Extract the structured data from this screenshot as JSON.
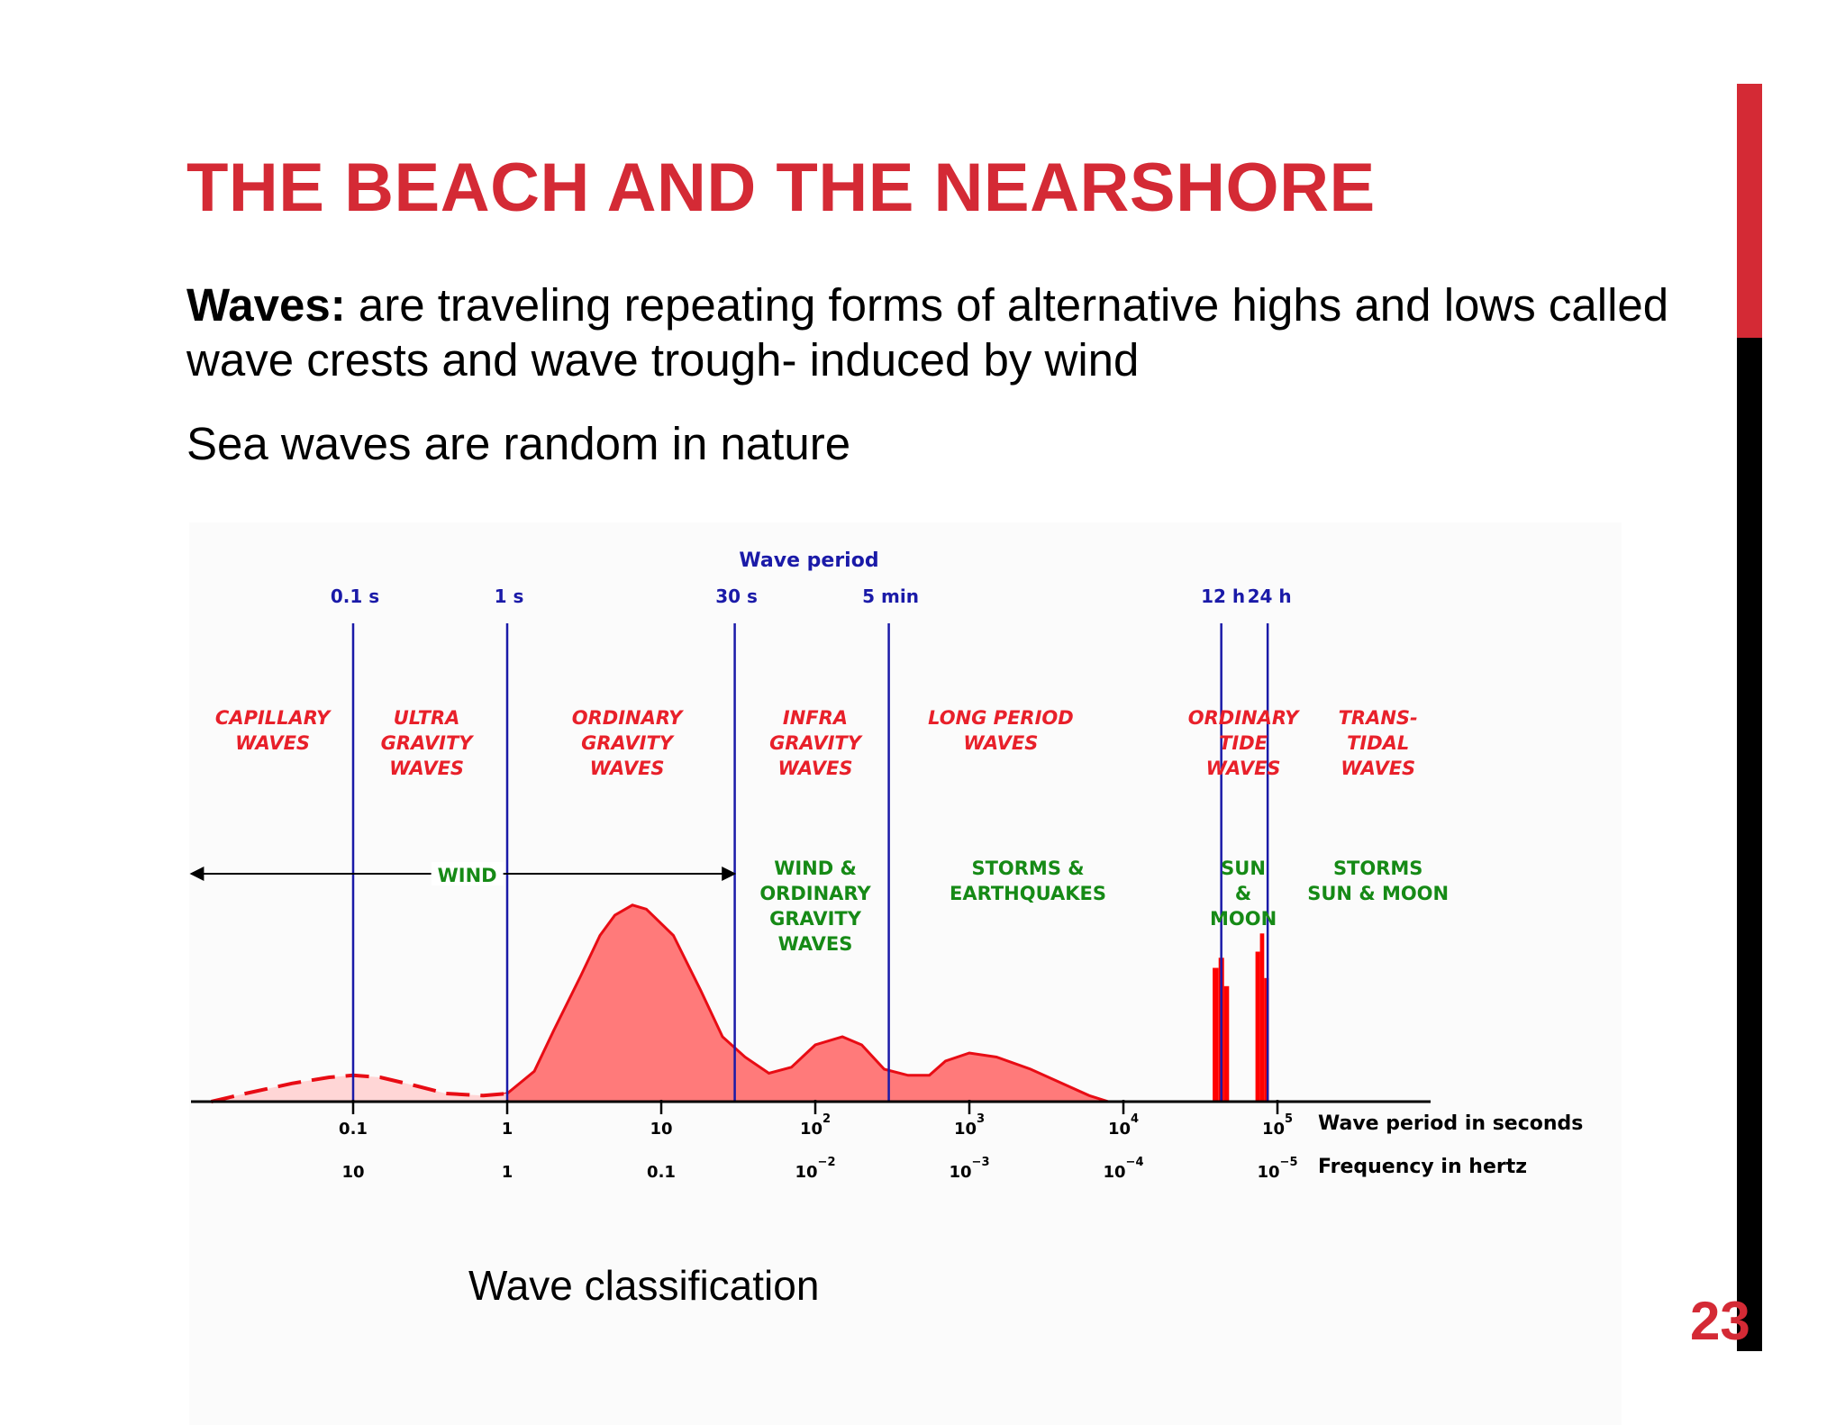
{
  "slide": {
    "title": "THE BEACH AND THE NEARSHORE",
    "definition_term": "Waves:",
    "definition_text": " are traveling repeating forms of alternative highs and lows called wave crests and wave trough- induced by wind",
    "note": "Sea waves are random in nature",
    "caption": "Wave classification",
    "page_number": "23",
    "accent_color": "#d42a35"
  },
  "chart_data": {
    "type": "area",
    "title": "Wave period",
    "x_scale": "log",
    "x_unit": "seconds",
    "xlim": [
      0.01,
      400000
    ],
    "period_markers": [
      {
        "label": "0.1 s",
        "seconds": 0.1
      },
      {
        "label": "1 s",
        "seconds": 1
      },
      {
        "label": "30 s",
        "seconds": 30
      },
      {
        "label": "5 min",
        "seconds": 300
      },
      {
        "label": "12 h",
        "seconds": 43200
      },
      {
        "label": "24 h",
        "seconds": 86400
      }
    ],
    "axis_rows": [
      {
        "name": "Wave period in seconds",
        "ticks": [
          {
            "seconds": 0.1,
            "base": "0.1",
            "exp": ""
          },
          {
            "seconds": 1,
            "base": "1",
            "exp": ""
          },
          {
            "seconds": 10,
            "base": "10",
            "exp": ""
          },
          {
            "seconds": 100,
            "base": "10",
            "exp": "2"
          },
          {
            "seconds": 1000,
            "base": "10",
            "exp": "3"
          },
          {
            "seconds": 10000,
            "base": "10",
            "exp": "4"
          },
          {
            "seconds": 100000,
            "base": "10",
            "exp": "5"
          }
        ]
      },
      {
        "name": "Frequency in hertz",
        "ticks": [
          {
            "seconds": 0.1,
            "base": "10",
            "exp": ""
          },
          {
            "seconds": 1,
            "base": "1",
            "exp": ""
          },
          {
            "seconds": 10,
            "base": "0.1",
            "exp": ""
          },
          {
            "seconds": 100,
            "base": "10",
            "exp": "−2"
          },
          {
            "seconds": 1000,
            "base": "10",
            "exp": "−3"
          },
          {
            "seconds": 10000,
            "base": "10",
            "exp": "−4"
          },
          {
            "seconds": 100000,
            "base": "10",
            "exp": "−5"
          }
        ]
      }
    ],
    "wave_types": [
      {
        "lines": [
          "CAPILLARY",
          "WAVES"
        ],
        "center_seconds": 0.03
      },
      {
        "lines": [
          "ULTRA",
          "GRAVITY",
          "WAVES"
        ],
        "center_seconds": 0.3
      },
      {
        "lines": [
          "ORDINARY",
          "GRAVITY",
          "WAVES"
        ],
        "center_seconds": 6
      },
      {
        "lines": [
          "INFRA",
          "GRAVITY",
          "WAVES"
        ],
        "center_seconds": 100
      },
      {
        "lines": [
          "LONG PERIOD",
          "WAVES"
        ],
        "center_seconds": 1600
      },
      {
        "lines": [
          "ORDINARY",
          "TIDE",
          "WAVES"
        ],
        "center_seconds": 60000
      },
      {
        "lines": [
          "TRANS-",
          "TIDAL",
          "WAVES"
        ],
        "center_seconds": 450000
      }
    ],
    "forcings": [
      {
        "lines": [
          "WIND"
        ],
        "center_seconds": 0.55,
        "arrow": {
          "from_seconds": 0.001,
          "to_seconds": 30
        }
      },
      {
        "lines": [
          "WIND &",
          "ORDINARY",
          "GRAVITY",
          "WAVES"
        ],
        "center_seconds": 100
      },
      {
        "lines": [
          "STORMS &",
          "EARTHQUAKES"
        ],
        "center_seconds": 2400
      },
      {
        "lines": [
          "SUN",
          "&",
          "MOON"
        ],
        "center_seconds": 60000
      },
      {
        "lines": [
          "STORMS",
          "SUN & MOON"
        ],
        "center_seconds": 450000
      }
    ],
    "energy_curve": {
      "y_unit": "relative energy",
      "solid_points": [
        [
          0.7,
          0.02
        ],
        [
          1.0,
          0.04
        ],
        [
          1.5,
          0.15
        ],
        [
          2,
          0.35
        ],
        [
          3,
          0.62
        ],
        [
          4,
          0.82
        ],
        [
          5,
          0.92
        ],
        [
          6.5,
          0.97
        ],
        [
          8,
          0.95
        ],
        [
          12,
          0.82
        ],
        [
          18,
          0.55
        ],
        [
          25,
          0.32
        ],
        [
          35,
          0.22
        ],
        [
          50,
          0.14
        ],
        [
          70,
          0.17
        ],
        [
          100,
          0.28
        ],
        [
          150,
          0.32
        ],
        [
          200,
          0.28
        ],
        [
          280,
          0.16
        ],
        [
          400,
          0.13
        ],
        [
          550,
          0.13
        ],
        [
          700,
          0.2
        ],
        [
          1000,
          0.24
        ],
        [
          1500,
          0.22
        ],
        [
          2500,
          0.16
        ],
        [
          4000,
          0.09
        ],
        [
          6000,
          0.03
        ],
        [
          8000,
          0.0
        ]
      ],
      "dashed_points": [
        [
          0.012,
          0.0
        ],
        [
          0.02,
          0.04
        ],
        [
          0.04,
          0.09
        ],
        [
          0.07,
          0.12
        ],
        [
          0.1,
          0.13
        ],
        [
          0.15,
          0.12
        ],
        [
          0.25,
          0.08
        ],
        [
          0.4,
          0.04
        ],
        [
          0.7,
          0.03
        ],
        [
          1.0,
          0.04
        ]
      ],
      "tide_bars": [
        {
          "from_seconds": 38000,
          "to_seconds": 41500,
          "level": 0.66
        },
        {
          "from_seconds": 41500,
          "to_seconds": 45000,
          "level": 0.71
        },
        {
          "from_seconds": 45000,
          "to_seconds": 48500,
          "level": 0.57
        },
        {
          "from_seconds": 72000,
          "to_seconds": 77000,
          "level": 0.74
        },
        {
          "from_seconds": 77000,
          "to_seconds": 82000,
          "level": 0.83
        },
        {
          "from_seconds": 82000,
          "to_seconds": 88000,
          "level": 0.61
        }
      ]
    },
    "colors": {
      "markers": "#1a1aa8",
      "wave_type_text": "#e8202a",
      "forcing_text": "#168a16",
      "fill": "#ff7a7a",
      "stroke": "#e80c14",
      "bars": "#ff0000",
      "axis": "#000000"
    }
  }
}
